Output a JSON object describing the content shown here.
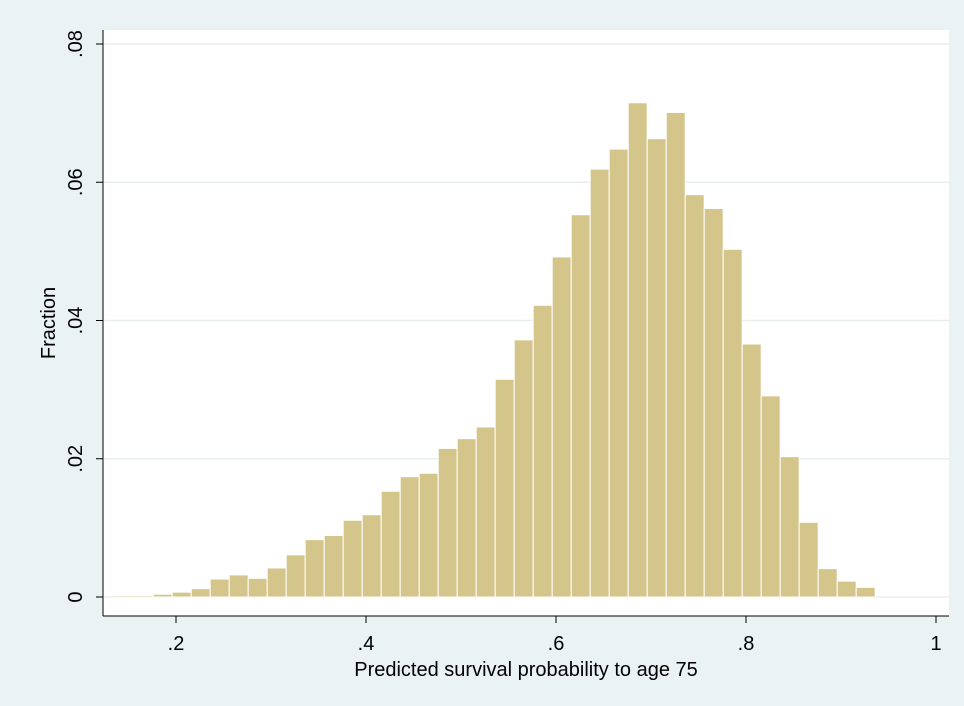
{
  "chart_data": {
    "type": "bar",
    "xlabel": "Predicted survival probability to age 75",
    "ylabel": "Fraction",
    "xlim": [
      0.1,
      1.0
    ],
    "ylim": [
      0,
      0.08
    ],
    "x_ticks": [
      0.2,
      0.4,
      0.6,
      0.8,
      1.0
    ],
    "x_tick_labels": [
      ".2",
      ".4",
      ".6",
      ".8",
      "1"
    ],
    "y_ticks": [
      0,
      0.02,
      0.04,
      0.06,
      0.08
    ],
    "y_tick_labels": [
      "0",
      ".02",
      ".04",
      ".06",
      ".08"
    ],
    "grid": true,
    "bin_width": 0.02,
    "bin_starts": [
      0.136,
      0.156,
      0.176,
      0.196,
      0.216,
      0.236,
      0.256,
      0.276,
      0.296,
      0.316,
      0.336,
      0.356,
      0.376,
      0.396,
      0.416,
      0.436,
      0.456,
      0.476,
      0.496,
      0.516,
      0.536,
      0.556,
      0.576,
      0.596,
      0.616,
      0.636,
      0.656,
      0.676,
      0.696,
      0.716,
      0.736,
      0.756,
      0.776,
      0.796,
      0.816,
      0.836,
      0.856,
      0.876,
      0.896,
      0.916
    ],
    "values": [
      0.0002,
      0.0002,
      0.0004,
      0.0007,
      0.0012,
      0.0026,
      0.0032,
      0.0027,
      0.0042,
      0.0061,
      0.0083,
      0.0089,
      0.0111,
      0.0119,
      0.0153,
      0.0174,
      0.0179,
      0.0215,
      0.0229,
      0.0246,
      0.0315,
      0.0372,
      0.0422,
      0.0492,
      0.0553,
      0.0619,
      0.0648,
      0.0715,
      0.0663,
      0.0701,
      0.0582,
      0.0562,
      0.0503,
      0.0366,
      0.0291,
      0.0203,
      0.0108,
      0.0041,
      0.0023,
      0.0014
    ],
    "bar_color": "#d4c58b",
    "bar_edge_color": "#ffffff"
  }
}
